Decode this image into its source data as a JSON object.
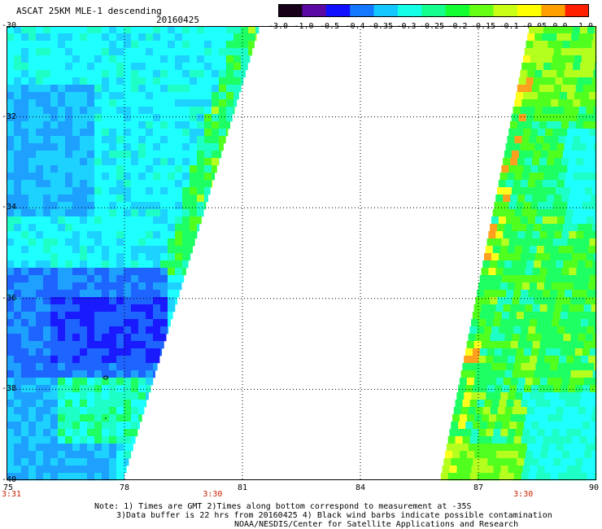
{
  "header": {
    "title": "ASCAT 25KM MLE-1 descending",
    "date": "20160425"
  },
  "colorbar": {
    "labels": [
      "-3.0",
      "-1.0",
      "-0.5",
      "-0.4",
      "-0.35",
      "-0.3",
      "-0.25",
      "-0.2",
      "-0.15",
      "-0.1",
      "-0.05",
      "0.0",
      "1.0"
    ],
    "colors": [
      "#180018",
      "#5a0aa0",
      "#1010ff",
      "#1478ff",
      "#14c8ff",
      "#14ffe6",
      "#14ff8c",
      "#14ff32",
      "#64ff14",
      "#c8ff14",
      "#ffff00",
      "#ffa000",
      "#ff2000"
    ]
  },
  "map": {
    "lat_labels": [
      "-30",
      "-32",
      "-34",
      "-36",
      "-38",
      "-40"
    ],
    "lon_labels": [
      "75",
      "78",
      "81",
      "84",
      "87",
      "90"
    ],
    "lat_values": [
      -30,
      -32,
      -34,
      -36,
      -38,
      -40
    ],
    "lon_values": [
      75,
      78,
      81,
      84,
      87,
      90
    ],
    "time_labels": [
      {
        "text": "3:31",
        "lon": 75
      },
      {
        "text": "3:30",
        "lon": 80.2
      },
      {
        "text": "3:30",
        "lon": 88.1
      }
    ],
    "swath_colors": {
      "deep_blue": "#1a1aff",
      "blue": "#1e64ff",
      "light_blue": "#1ea0ff",
      "sky": "#1ed2ff",
      "cyan": "#1effff",
      "aqua": "#1effc8",
      "green": "#1eff64",
      "lime": "#50ff1e",
      "yellow_green": "#b4ff1e",
      "yellow": "#ffff1e",
      "orange": "#ffa01e"
    }
  },
  "notes": {
    "line1": "Note: 1) Times are GMT 2)Times along bottom correspond to measurement at -35S",
    "line2": "3)Data buffer is 22 hrs from 20160425 4) Black wind barbs indicate possible contamination",
    "line3": "NOAA/NESDIS/Center for Satellite Applications and Research"
  }
}
